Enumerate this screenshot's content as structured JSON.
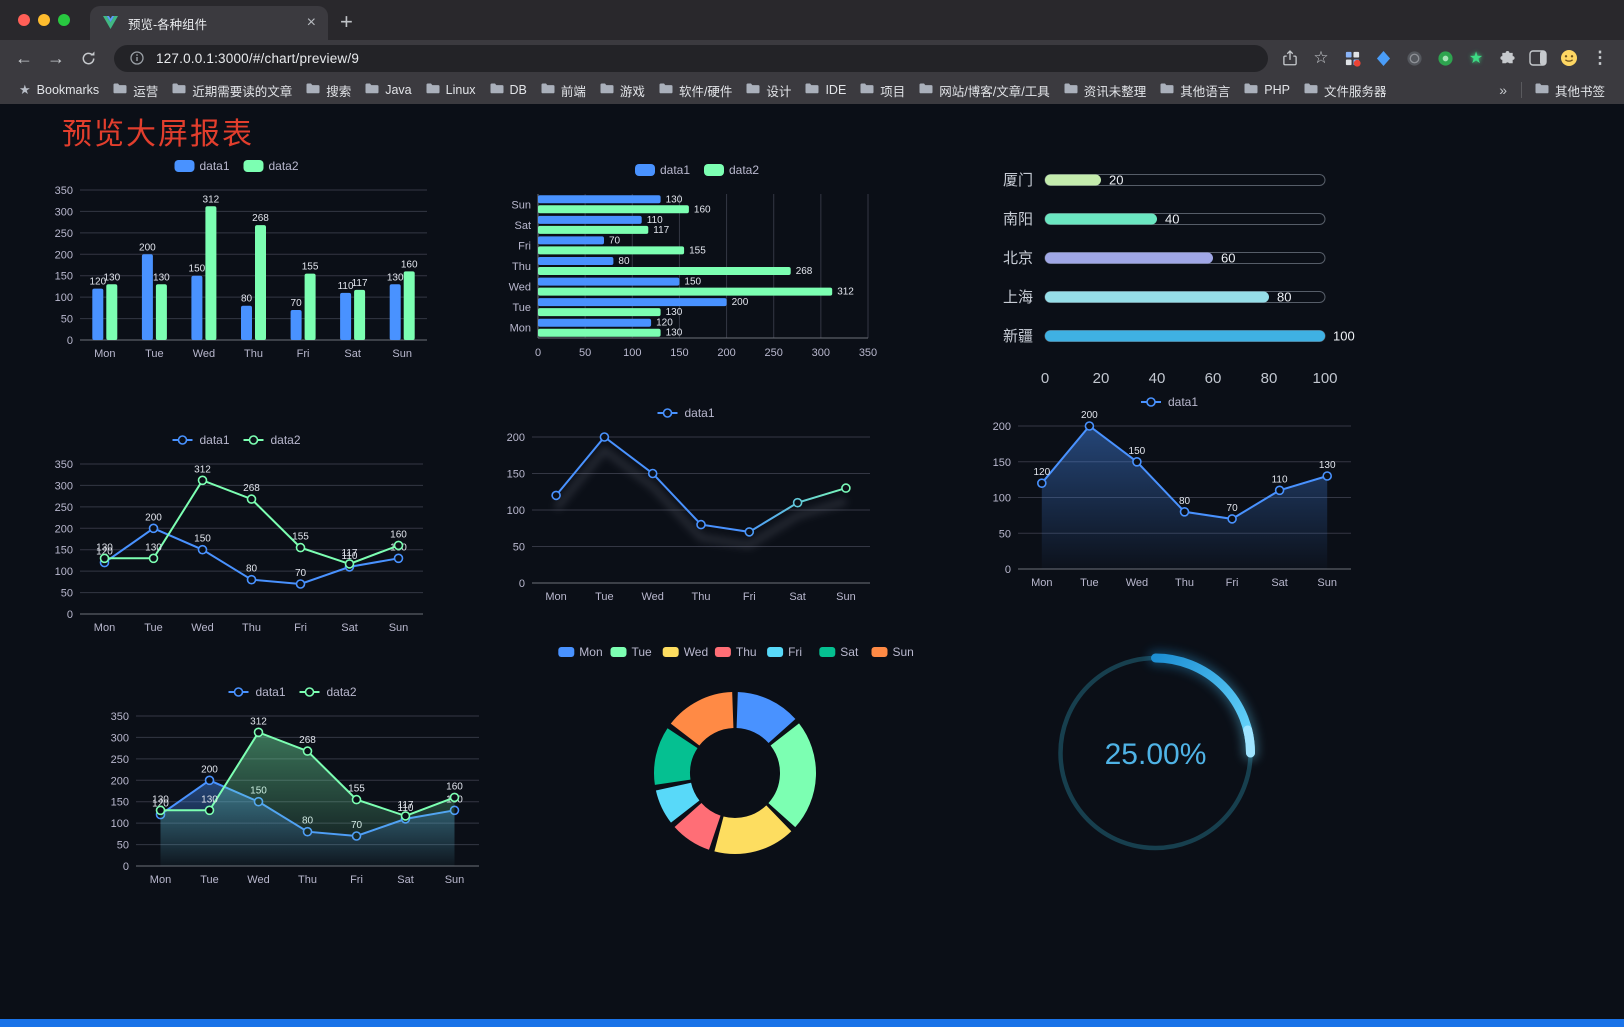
{
  "window": {
    "tab": {
      "title": "预览-各种组件"
    },
    "toolbar": {
      "url": "127.0.0.1:3000/#/chart/preview/9"
    },
    "bookmarks_bar": {
      "label": "Bookmarks",
      "items": [
        "运营",
        "近期需要读的文章",
        "搜索",
        "Java",
        "Linux",
        "DB",
        "前端",
        "游戏",
        "软件/硬件",
        "设计",
        "IDE",
        "项目",
        "网站/博客/文章/工具",
        "资讯未整理",
        "其他语言",
        "PHP",
        "文件服务器"
      ],
      "overflow": "»",
      "other_bookmarks": "其他书签"
    }
  },
  "page": {
    "title": "预览大屏报表",
    "title_color": "#e23e2d",
    "background": "#0b0f17",
    "footer_color": "#1a73e8"
  },
  "chart_data": [
    {
      "name": "grouped-bar",
      "type": "bar",
      "categories": [
        "Mon",
        "Tue",
        "Wed",
        "Thu",
        "Fri",
        "Sat",
        "Sun"
      ],
      "series": [
        {
          "name": "data1",
          "color": "#4992ff",
          "values": [
            120,
            200,
            150,
            80,
            70,
            110,
            130
          ]
        },
        {
          "name": "data2",
          "color": "#7cffb2",
          "values": [
            130,
            130,
            312,
            268,
            155,
            117,
            160
          ]
        }
      ],
      "ylim": [
        0,
        350
      ],
      "ytick": 50,
      "legend_position": "top",
      "value_labels": true,
      "grid": true
    },
    {
      "name": "horizontal-bar",
      "type": "hbar",
      "categories": [
        "Mon",
        "Tue",
        "Wed",
        "Thu",
        "Fri",
        "Sat",
        "Sun"
      ],
      "series": [
        {
          "name": "data1",
          "color": "#4992ff",
          "values": [
            120,
            200,
            150,
            80,
            70,
            110,
            130
          ]
        },
        {
          "name": "data2",
          "color": "#7cffb2",
          "values": [
            130,
            130,
            312,
            268,
            155,
            117,
            160
          ]
        }
      ],
      "xlim": [
        0,
        350
      ],
      "xtick": 50,
      "legend_position": "top",
      "value_labels": true,
      "grid": true
    },
    {
      "name": "city-progress",
      "type": "progress",
      "xlim": [
        0,
        100
      ],
      "xticks": [
        0,
        20,
        40,
        60,
        80,
        100
      ],
      "items": [
        {
          "label": "厦门",
          "value": 20,
          "color": "#c4ebad"
        },
        {
          "label": "南阳",
          "value": 40,
          "color": "#6be6c1"
        },
        {
          "label": "北京",
          "value": 60,
          "color": "#a0a7e6"
        },
        {
          "label": "上海",
          "value": 80,
          "color": "#96dee8"
        },
        {
          "label": "新疆",
          "value": 100,
          "color": "#3fb1e3"
        }
      ]
    },
    {
      "name": "dual-line",
      "type": "line",
      "categories": [
        "Mon",
        "Tue",
        "Wed",
        "Thu",
        "Fri",
        "Sat",
        "Sun"
      ],
      "series": [
        {
          "name": "data1",
          "color": "#4992ff",
          "values": [
            120,
            200,
            150,
            80,
            70,
            110,
            130
          ]
        },
        {
          "name": "data2",
          "color": "#7cffb2",
          "values": [
            130,
            130,
            312,
            268,
            155,
            117,
            160
          ]
        }
      ],
      "ylim": [
        0,
        350
      ],
      "ytick": 50,
      "legend_position": "top",
      "value_labels": true,
      "markers": true,
      "grid": true
    },
    {
      "name": "single-line-gradient",
      "type": "line",
      "categories": [
        "Mon",
        "Tue",
        "Wed",
        "Thu",
        "Fri",
        "Sat",
        "Sun"
      ],
      "series": [
        {
          "name": "data1",
          "color": "#4992ff",
          "color_end": "#7cffb2",
          "values": [
            120,
            200,
            150,
            80,
            70,
            110,
            130
          ]
        }
      ],
      "ylim": [
        0,
        200
      ],
      "ytick": 50,
      "legend_position": "top",
      "value_labels": false,
      "markers": true,
      "gradient_line": true,
      "shadow": true,
      "grid": true
    },
    {
      "name": "single-area",
      "type": "line",
      "area": true,
      "categories": [
        "Mon",
        "Tue",
        "Wed",
        "Thu",
        "Fri",
        "Sat",
        "Sun"
      ],
      "series": [
        {
          "name": "data1",
          "color": "#4992ff",
          "values": [
            120,
            200,
            150,
            80,
            70,
            110,
            130
          ]
        }
      ],
      "ylim": [
        0,
        200
      ],
      "ytick": 50,
      "legend_position": "top",
      "value_labels": true,
      "markers": true,
      "grid": true
    },
    {
      "name": "dual-area",
      "type": "line",
      "area": true,
      "categories": [
        "Mon",
        "Tue",
        "Wed",
        "Thu",
        "Fri",
        "Sat",
        "Sun"
      ],
      "series": [
        {
          "name": "data1",
          "color": "#4992ff",
          "values": [
            120,
            200,
            150,
            80,
            70,
            110,
            130
          ]
        },
        {
          "name": "data2",
          "color": "#7cffb2",
          "values": [
            130,
            130,
            312,
            268,
            155,
            117,
            160
          ]
        }
      ],
      "ylim": [
        0,
        350
      ],
      "ytick": 50,
      "legend_position": "top",
      "value_labels": true,
      "markers": true,
      "grid": true
    },
    {
      "name": "weekday-donut",
      "type": "pie",
      "legend_position": "top",
      "segments": [
        {
          "label": "Mon",
          "value": 120,
          "color": "#4992ff"
        },
        {
          "label": "Tue",
          "value": 200,
          "color": "#7cffb2"
        },
        {
          "label": "Wed",
          "value": 150,
          "color": "#fddd60"
        },
        {
          "label": "Thu",
          "value": 80,
          "color": "#ff6e76"
        },
        {
          "label": "Fri",
          "value": 70,
          "color": "#58d9f9"
        },
        {
          "label": "Sat",
          "value": 110,
          "color": "#05c091"
        },
        {
          "label": "Sun",
          "value": 130,
          "color": "#ff8a45"
        }
      ]
    },
    {
      "name": "percent-gauge",
      "type": "gauge",
      "value": 25,
      "max": 100,
      "label": "25.00%",
      "color": "#37a2da",
      "track_color": "#173f4e",
      "text_color": "#4fb3e6"
    }
  ]
}
